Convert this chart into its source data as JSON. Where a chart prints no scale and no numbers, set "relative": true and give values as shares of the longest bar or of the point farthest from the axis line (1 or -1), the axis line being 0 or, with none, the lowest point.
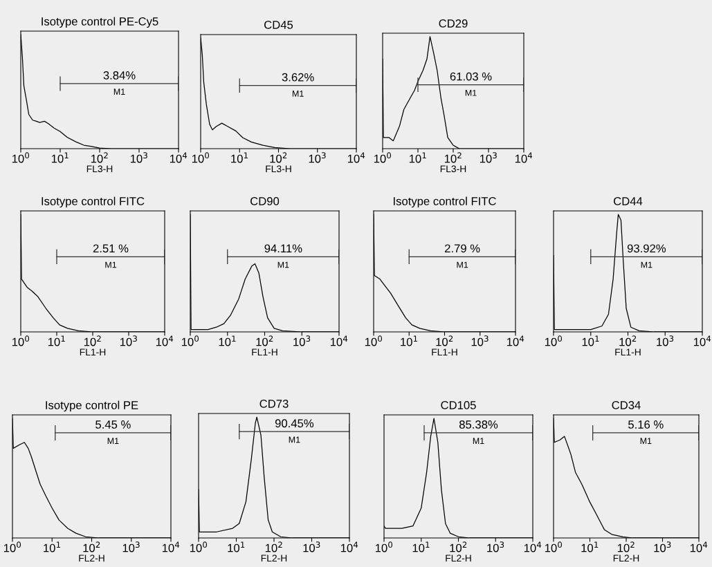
{
  "chart_data": [
    {
      "type": "line",
      "title": "Isotype control PE-Cy5",
      "xlabel": "FL3-H",
      "relative": true,
      "log": "x",
      "tick_labels": "x",
      "xlim": [
        1,
        10000
      ],
      "xticks": [
        {
          "value": 1,
          "label": "10$^{0}$"
        },
        {
          "value": 10,
          "label": "10$^{1}$"
        },
        {
          "value": 100,
          "label": "10$^{2}$"
        },
        {
          "value": 1000,
          "label": "10$^{3}$"
        },
        {
          "value": 10000,
          "label": "10$^{4}$"
        }
      ],
      "series": [
        {
          "color": "#000000",
          "x": [
            1,
            1.1,
            1.2,
            1.4,
            1.6,
            2,
            2.5,
            3,
            4,
            5,
            7,
            10,
            15,
            25,
            40,
            60,
            100,
            200,
            10000
          ],
          "values": [
            1.0,
            0.8,
            0.55,
            0.42,
            0.3,
            0.25,
            0.24,
            0.23,
            0.24,
            0.22,
            0.18,
            0.15,
            0.1,
            0.06,
            0.03,
            0.02,
            0.005,
            0,
            0
          ]
        },
        {
          "name": "M1",
          "color": "#333333",
          "x": [
            10,
            10000
          ],
          "values": [
            0.57,
            0.57
          ]
        }
      ],
      "annotations": [
        "3.84%"
      ]
    },
    {
      "type": "line",
      "title": "CD45",
      "xlabel": "FL3-H",
      "relative": true,
      "log": "x",
      "tick_labels": "x",
      "xlim": [
        1,
        10000
      ],
      "xticks": [
        {
          "value": 1,
          "label": "10$^{0}$"
        },
        {
          "value": 10,
          "label": "10$^{1}$"
        },
        {
          "value": 100,
          "label": "10$^{2}$"
        },
        {
          "value": 1000,
          "label": "10$^{3}$"
        },
        {
          "value": 10000,
          "label": "10$^{4}$"
        }
      ],
      "series": [
        {
          "color": "#000000",
          "x": [
            1,
            1.1,
            1.2,
            1.4,
            1.7,
            2,
            2.5,
            3.5,
            5,
            8,
            12,
            20,
            40,
            80,
            200,
            10000
          ],
          "values": [
            1.0,
            0.85,
            0.6,
            0.4,
            0.22,
            0.17,
            0.2,
            0.23,
            0.2,
            0.16,
            0.1,
            0.06,
            0.03,
            0.01,
            0,
            0
          ]
        },
        {
          "name": "M1",
          "color": "#333333",
          "x": [
            10,
            10000
          ],
          "values": [
            0.57,
            0.57
          ]
        }
      ],
      "annotations": [
        "3.62%"
      ]
    },
    {
      "type": "line",
      "title": "CD29",
      "xlabel": "FL3-H",
      "relative": true,
      "log": "x",
      "tick_labels": "x",
      "xlim": [
        1,
        10000
      ],
      "xticks": [
        {
          "value": 1,
          "label": "10$^{0}$"
        },
        {
          "value": 10,
          "label": "10$^{1}$"
        },
        {
          "value": 100,
          "label": "10$^{2}$"
        },
        {
          "value": 1000,
          "label": "10$^{3}$"
        },
        {
          "value": 10000,
          "label": "10$^{4}$"
        }
      ],
      "series": [
        {
          "color": "#000000",
          "x": [
            1,
            1.05,
            1.5,
            2,
            3,
            4,
            6,
            8,
            10,
            14,
            18,
            22,
            28,
            35,
            45,
            55,
            70,
            100,
            150,
            10000
          ],
          "values": [
            0.8,
            0.1,
            0.1,
            0.07,
            0.2,
            0.35,
            0.45,
            0.52,
            0.6,
            0.7,
            0.8,
            1.0,
            0.85,
            0.7,
            0.45,
            0.3,
            0.1,
            0.03,
            0,
            0
          ]
        },
        {
          "name": "M1",
          "color": "#333333",
          "x": [
            10,
            10000
          ],
          "values": [
            0.57,
            0.57
          ]
        }
      ],
      "annotations": [
        "61.03 %"
      ]
    },
    {
      "type": "line",
      "title": "Isotype control FITC",
      "xlabel": "FL1-H",
      "relative": true,
      "log": "x",
      "tick_labels": "x",
      "xlim": [
        1,
        10000
      ],
      "xticks": [
        {
          "value": 1,
          "label": "10$^{0}$"
        },
        {
          "value": 10,
          "label": "10$^{1}$"
        },
        {
          "value": 100,
          "label": "10$^{2}$"
        },
        {
          "value": 1000,
          "label": "10$^{3}$"
        },
        {
          "value": 10000,
          "label": "10$^{4}$"
        }
      ],
      "series": [
        {
          "color": "#000000",
          "x": [
            1,
            1.05,
            1.5,
            2,
            3,
            5,
            8,
            12,
            20,
            40,
            100,
            10000
          ],
          "values": [
            1.0,
            0.45,
            0.38,
            0.35,
            0.3,
            0.2,
            0.12,
            0.06,
            0.03,
            0.01,
            0,
            0
          ]
        },
        {
          "name": "M1",
          "color": "#333333",
          "x": [
            10,
            10000
          ],
          "values": [
            0.64,
            0.64
          ]
        }
      ],
      "annotations": [
        "2.51 %"
      ]
    },
    {
      "type": "line",
      "title": "CD90",
      "xlabel": "FL1-H",
      "relative": true,
      "log": "x",
      "tick_labels": "x",
      "xlim": [
        1,
        10000
      ],
      "xticks": [
        {
          "value": 1,
          "label": "10$^{0}$"
        },
        {
          "value": 10,
          "label": "10$^{1}$"
        },
        {
          "value": 100,
          "label": "10$^{2}$"
        },
        {
          "value": 1000,
          "label": "10$^{3}$"
        },
        {
          "value": 10000,
          "label": "10$^{4}$"
        }
      ],
      "series": [
        {
          "color": "#000000",
          "x": [
            1,
            1.05,
            3,
            5,
            8,
            12,
            20,
            30,
            45,
            55,
            70,
            90,
            120,
            180,
            300,
            1000,
            10000
          ],
          "values": [
            1.0,
            0.02,
            0.02,
            0.04,
            0.07,
            0.14,
            0.28,
            0.45,
            0.56,
            0.58,
            0.5,
            0.3,
            0.12,
            0.03,
            0.01,
            0,
            0
          ]
        },
        {
          "name": "M1",
          "color": "#333333",
          "x": [
            10,
            10000
          ],
          "values": [
            0.64,
            0.64
          ]
        }
      ],
      "annotations": [
        "94.11%"
      ]
    },
    {
      "type": "line",
      "title": "Isotype control FITC",
      "xlabel": "FL1-H",
      "relative": true,
      "log": "x",
      "tick_labels": "x",
      "xlim": [
        1,
        10000
      ],
      "xticks": [
        {
          "value": 1,
          "label": "10$^{0}$"
        },
        {
          "value": 10,
          "label": "10$^{1}$"
        },
        {
          "value": 100,
          "label": "10$^{2}$"
        },
        {
          "value": 1000,
          "label": "10$^{3}$"
        },
        {
          "value": 10000,
          "label": "10$^{4}$"
        }
      ],
      "series": [
        {
          "color": "#000000",
          "x": [
            1,
            1.05,
            1.5,
            2,
            3,
            5,
            8,
            12,
            20,
            40,
            100,
            10000
          ],
          "values": [
            1.0,
            0.48,
            0.45,
            0.4,
            0.33,
            0.22,
            0.12,
            0.06,
            0.03,
            0.01,
            0,
            0
          ]
        },
        {
          "name": "M1",
          "color": "#333333",
          "x": [
            10,
            10000
          ],
          "values": [
            0.64,
            0.64
          ]
        }
      ],
      "annotations": [
        "2.79 %"
      ]
    },
    {
      "type": "line",
      "title": "CD44",
      "xlabel": "FL1-H",
      "relative": true,
      "log": "x",
      "tick_labels": "x",
      "xlim": [
        1,
        10000
      ],
      "xticks": [
        {
          "value": 1,
          "label": "10$^{0}$"
        },
        {
          "value": 10,
          "label": "10$^{1}$"
        },
        {
          "value": 100,
          "label": "10$^{2}$"
        },
        {
          "value": 1000,
          "label": "10$^{3}$"
        },
        {
          "value": 10000,
          "label": "10$^{4}$"
        }
      ],
      "series": [
        {
          "color": "#000000",
          "x": [
            1,
            1.05,
            10,
            20,
            30,
            40,
            50,
            55,
            65,
            75,
            90,
            120,
            200,
            500,
            10000
          ],
          "values": [
            0.65,
            0.02,
            0.02,
            0.05,
            0.15,
            0.45,
            0.85,
            1.0,
            0.95,
            0.6,
            0.2,
            0.04,
            0.01,
            0,
            0
          ]
        },
        {
          "name": "M1",
          "color": "#333333",
          "x": [
            10,
            10000
          ],
          "values": [
            0.64,
            0.64
          ]
        }
      ],
      "annotations": [
        "93.92%"
      ]
    },
    {
      "type": "line",
      "title": "Isotype control PE",
      "xlabel": "FL2-H",
      "relative": true,
      "log": "x",
      "tick_labels": "x",
      "xlim": [
        1,
        10000
      ],
      "xticks": [
        {
          "value": 1,
          "label": "10$^{0}$"
        },
        {
          "value": 10,
          "label": "10$^{1}$"
        },
        {
          "value": 100,
          "label": "10$^{2}$"
        },
        {
          "value": 1000,
          "label": "10$^{3}$"
        },
        {
          "value": 10000,
          "label": "10$^{4}$"
        }
      ],
      "series": [
        {
          "color": "#000000",
          "x": [
            1,
            1.05,
            1.5,
            2,
            2.5,
            3,
            4,
            5,
            7,
            10,
            15,
            25,
            40,
            70,
            150,
            10000
          ],
          "values": [
            1.0,
            0.75,
            0.78,
            0.8,
            0.75,
            0.68,
            0.55,
            0.45,
            0.35,
            0.25,
            0.15,
            0.08,
            0.04,
            0.01,
            0,
            0
          ]
        },
        {
          "name": "M1",
          "color": "#333333",
          "x": [
            12,
            10000
          ],
          "values": [
            0.88,
            0.88
          ]
        }
      ],
      "annotations": [
        "5.45 %"
      ]
    },
    {
      "type": "line",
      "title": "CD73",
      "xlabel": "FL2-H",
      "relative": true,
      "log": "x",
      "tick_labels": "x",
      "xlim": [
        1,
        10000
      ],
      "xticks": [
        {
          "value": 1,
          "label": "10$^{0}$"
        },
        {
          "value": 10,
          "label": "10$^{1}$"
        },
        {
          "value": 100,
          "label": "10$^{2}$"
        },
        {
          "value": 1000,
          "label": "10$^{3}$"
        },
        {
          "value": 10000,
          "label": "10$^{4}$"
        }
      ],
      "series": [
        {
          "color": "#000000",
          "x": [
            1,
            1.05,
            3,
            8,
            12,
            18,
            25,
            32,
            35,
            45,
            55,
            70,
            90,
            150,
            300,
            10000
          ],
          "values": [
            0.4,
            0.05,
            0.05,
            0.08,
            0.12,
            0.3,
            0.65,
            0.95,
            1.0,
            0.85,
            0.5,
            0.15,
            0.05,
            0.01,
            0,
            0
          ]
        },
        {
          "name": "M1",
          "color": "#333333",
          "x": [
            12,
            10000
          ],
          "values": [
            0.88,
            0.88
          ]
        }
      ],
      "annotations": [
        "90.45%"
      ]
    },
    {
      "type": "line",
      "title": "CD105",
      "xlabel": "FL2-H",
      "relative": true,
      "log": "x",
      "tick_labels": "x",
      "xlim": [
        1,
        10000
      ],
      "xticks": [
        {
          "value": 1,
          "label": "10$^{0}$"
        },
        {
          "value": 10,
          "label": "10$^{1}$"
        },
        {
          "value": 100,
          "label": "10$^{2}$"
        },
        {
          "value": 1000,
          "label": "10$^{3}$"
        },
        {
          "value": 10000,
          "label": "10$^{4}$"
        }
      ],
      "series": [
        {
          "color": "#000000",
          "x": [
            1,
            1.1,
            3,
            6,
            10,
            14,
            18,
            22,
            28,
            35,
            45,
            60,
            100,
            200,
            10000
          ],
          "values": [
            0.1,
            0.08,
            0.08,
            0.1,
            0.25,
            0.55,
            0.85,
            1.0,
            0.8,
            0.4,
            0.12,
            0.04,
            0.01,
            0,
            0
          ]
        },
        {
          "name": "M1",
          "color": "#333333",
          "x": [
            12,
            10000
          ],
          "values": [
            0.88,
            0.88
          ]
        }
      ],
      "annotations": [
        "85.38%"
      ]
    },
    {
      "type": "line",
      "title": "CD34",
      "xlabel": "FL2-H",
      "relative": true,
      "log": "x",
      "tick_labels": "x",
      "xlim": [
        1,
        10000
      ],
      "xticks": [
        {
          "value": 1,
          "label": "10$^{0}$"
        },
        {
          "value": 10,
          "label": "10$^{1}$"
        },
        {
          "value": 100,
          "label": "10$^{2}$"
        },
        {
          "value": 1000,
          "label": "10$^{3}$"
        },
        {
          "value": 10000,
          "label": "10$^{4}$"
        }
      ],
      "series": [
        {
          "color": "#000000",
          "x": [
            1,
            1.05,
            1.5,
            2,
            3,
            4,
            6,
            10,
            15,
            25,
            40,
            80,
            150,
            10000
          ],
          "values": [
            1.0,
            0.8,
            0.82,
            0.85,
            0.7,
            0.55,
            0.45,
            0.3,
            0.2,
            0.07,
            0.03,
            0.01,
            0,
            0
          ]
        },
        {
          "name": "M1",
          "color": "#333333",
          "x": [
            12,
            10000
          ],
          "values": [
            0.88,
            0.88
          ]
        }
      ],
      "annotations": [
        "5.16 %"
      ]
    }
  ]
}
